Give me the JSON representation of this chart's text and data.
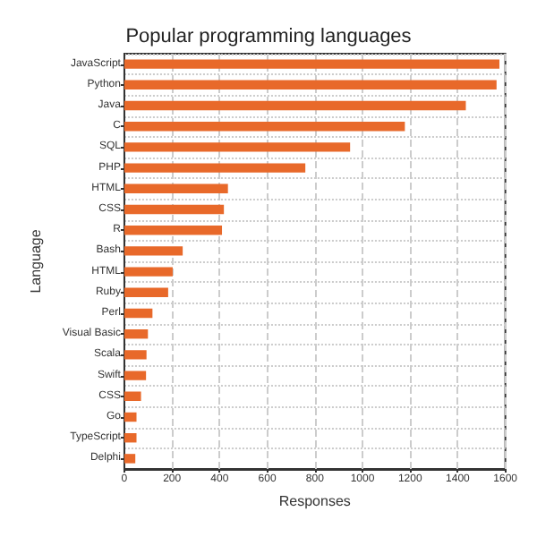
{
  "chart_data": {
    "type": "bar",
    "orientation": "horizontal",
    "title": "Popular programming languages",
    "xlabel": "Responses",
    "ylabel": "Language",
    "categories": [
      "JavaScript",
      "Python",
      "Java",
      "C",
      "SQL",
      "PHP",
      "HTML",
      "CSS",
      "R",
      "Bash",
      "HTML",
      "Ruby",
      "Perl",
      "Visual Basic",
      "Scala",
      "Swift",
      "CSS",
      "Go",
      "TypeScript",
      "Delphi"
    ],
    "values": [
      1575,
      1563,
      1434,
      1178,
      948,
      760,
      435,
      418,
      410,
      245,
      203,
      184,
      118,
      99,
      93,
      91,
      70,
      51,
      51,
      46
    ],
    "color": "#e8692a",
    "xlim": [
      0,
      1600
    ],
    "xticks": [
      0,
      200,
      400,
      600,
      800,
      1000,
      1200,
      1400,
      1600
    ],
    "grid": true
  }
}
